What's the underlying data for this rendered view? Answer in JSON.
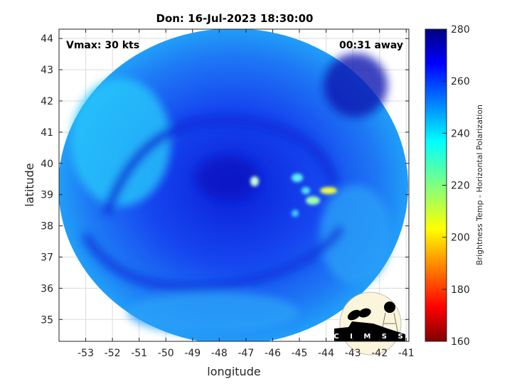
{
  "title": "Don: 16-Jul-2023 18:30:00",
  "vmax_label": "Vmax: 30 kts",
  "time_label": "00:31 away",
  "logo_text": "CIMSS",
  "chart_data": {
    "type": "heatmap",
    "xlabel": "longitude",
    "ylabel": "latitude",
    "xlim": [
      -54.0,
      -40.9
    ],
    "ylim": [
      34.3,
      44.3
    ],
    "xticks": [
      -53,
      -52,
      -51,
      -50,
      -49,
      -48,
      -47,
      -46,
      -45,
      -44,
      -43,
      -42,
      -41
    ],
    "yticks": [
      35,
      36,
      37,
      38,
      39,
      40,
      41,
      42,
      43,
      44
    ],
    "grid": true,
    "colorbar": {
      "label": "Brightness Temp - Horizontal Polarization",
      "range": [
        160,
        280
      ],
      "ticks": [
        160,
        180,
        200,
        220,
        240,
        260,
        280
      ],
      "colormap": "jet"
    },
    "center_lon": -47.3,
    "center_lat": 39.7
  }
}
